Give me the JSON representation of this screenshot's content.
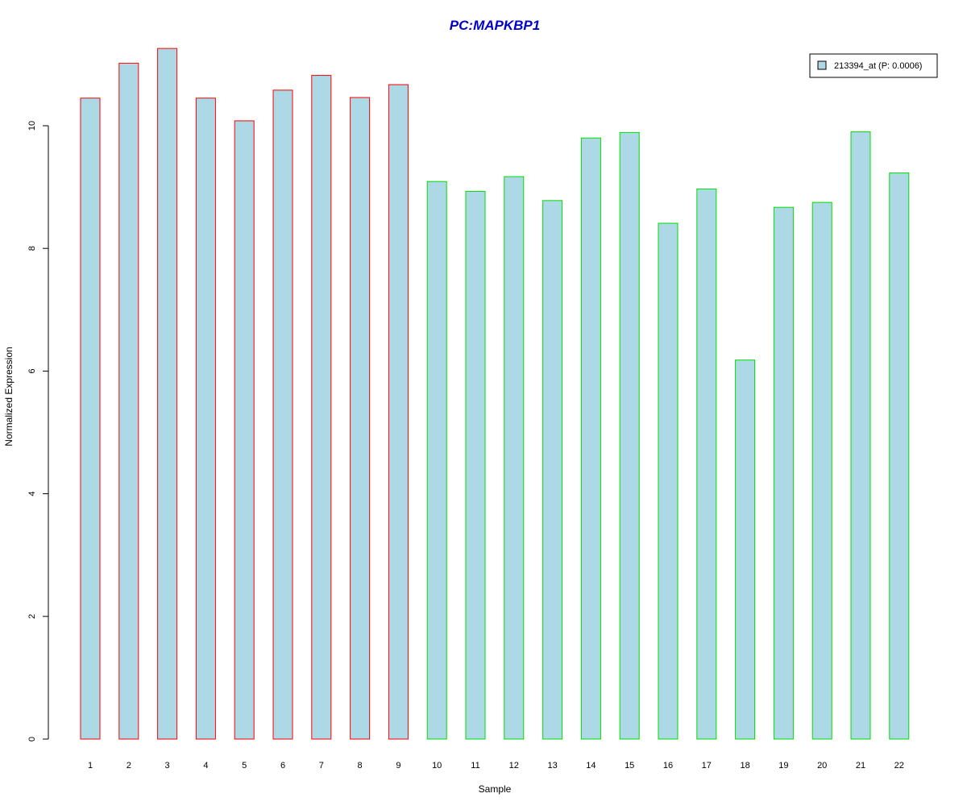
{
  "chart_data": {
    "type": "bar",
    "title": "PC:MAPKBP1",
    "xlabel": "Sample",
    "ylabel": "Normalized Expression",
    "categories": [
      "1",
      "2",
      "3",
      "4",
      "5",
      "6",
      "7",
      "8",
      "9",
      "10",
      "11",
      "12",
      "13",
      "14",
      "15",
      "16",
      "17",
      "18",
      "19",
      "20",
      "21",
      "22"
    ],
    "series": [
      {
        "name": "213394_at (P: 0.0006)",
        "values": [
          10.45,
          11.02,
          11.26,
          10.45,
          10.08,
          10.58,
          10.82,
          10.46,
          10.67,
          9.09,
          8.93,
          9.17,
          8.78,
          9.8,
          9.89,
          8.41,
          8.97,
          6.18,
          8.67,
          8.75,
          9.9,
          9.23
        ]
      }
    ],
    "group_border_colors": [
      "#ff0000",
      "#ff0000",
      "#ff0000",
      "#ff0000",
      "#ff0000",
      "#ff0000",
      "#ff0000",
      "#ff0000",
      "#ff0000",
      "#00dd00",
      "#00dd00",
      "#00dd00",
      "#00dd00",
      "#00dd00",
      "#00dd00",
      "#00dd00",
      "#00dd00",
      "#00dd00",
      "#00dd00",
      "#00dd00",
      "#00dd00",
      "#00dd00"
    ],
    "fill_color": "#add8e6",
    "title_color": "#0000cc",
    "y_ticks": [
      0,
      2,
      4,
      6,
      8,
      10
    ],
    "ylim": [
      0,
      11.3
    ],
    "grid": false,
    "legend_position": "top-right"
  }
}
